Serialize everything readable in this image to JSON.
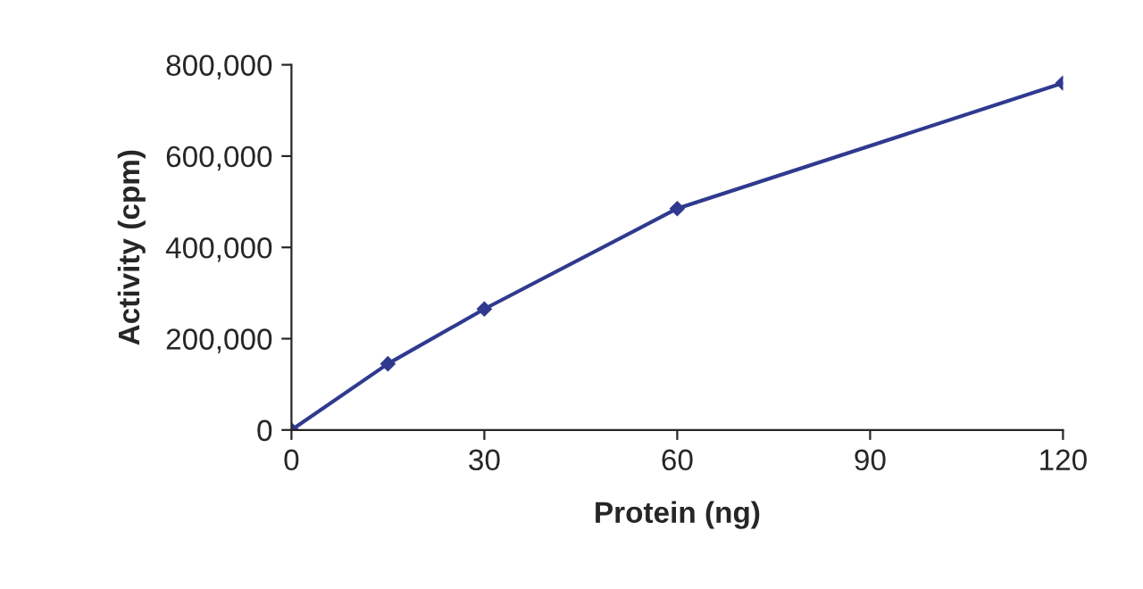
{
  "chart_data": {
    "type": "line",
    "xlabel": "Protein (ng)",
    "ylabel": "Activity (cpm)",
    "x": [
      0,
      15,
      30,
      60,
      120
    ],
    "series": [
      {
        "color": "#2f3a8f",
        "values": [
          0,
          145000,
          265000,
          485000,
          760000
        ]
      }
    ],
    "xlim": [
      0,
      120
    ],
    "xticks": [
      0,
      30,
      60,
      90,
      120
    ],
    "ylim": [
      0,
      800000
    ],
    "yticks": [
      0,
      {
        "value": 200000,
        "label": "200,000"
      },
      {
        "value": 400000,
        "label": "400,000"
      },
      {
        "value": 600000,
        "label": "600,000"
      },
      {
        "value": 800000,
        "label": "800,000"
      }
    ],
    "marker": "diamond",
    "line_style": "solid",
    "grid": false,
    "legend": false
  }
}
